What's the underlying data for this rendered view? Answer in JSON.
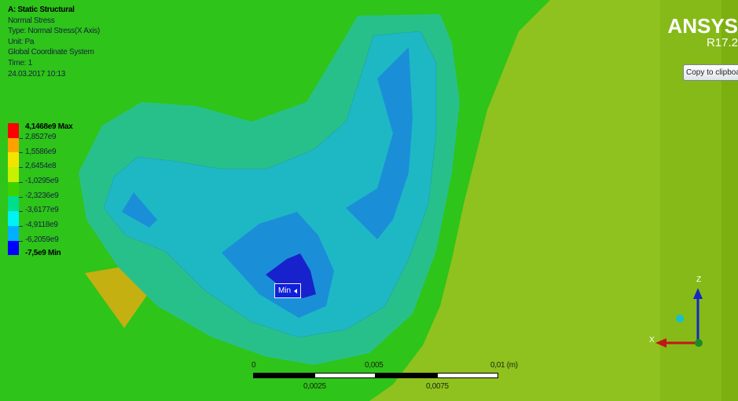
{
  "info": {
    "title": "A: Static Structural",
    "lines": [
      "Normal Stress",
      "Type: Normal Stress(X Axis)",
      "Unit: Pa",
      "Global Coordinate System",
      "Time: 1",
      "24.03.2017 10:13"
    ]
  },
  "legend": {
    "max_label": "4,1468e9 Max",
    "labels": [
      "2,8527e9",
      "1,5586e9",
      "2,6454e8",
      "-1,0295e9",
      "-2,3236e9",
      "-3,6177e9",
      "-4,9118e9",
      "-6,2059e9"
    ],
    "min_label": "-7,5e9 Min",
    "colors": [
      "#ff0000",
      "#ffa200",
      "#f3e400",
      "#c8f000",
      "#3cd200",
      "#00dd8c",
      "#00f2f2",
      "#00b0ff",
      "#0000ff"
    ]
  },
  "brand": {
    "name": "ANSYS",
    "version": "R17.2"
  },
  "toolbar": {
    "copy_label": "Copy to clipboard"
  },
  "probe": {
    "min_label": "Min"
  },
  "scale_bar": {
    "top_labels": [
      "0",
      "0,005",
      "0,01 (m)"
    ],
    "bottom_labels": [
      "0,0025",
      "0,0075"
    ]
  },
  "triad": {
    "z_label": "Z",
    "x_label": "X"
  },
  "colors": {
    "background": "#8fc21e",
    "band_green": "#2ec41a",
    "band_teal": "#28c08a",
    "band_cyan": "#1eb8c4",
    "band_blue": "#1a8fd8",
    "band_deep": "#1822cc",
    "band_yellow": "#c4b010"
  }
}
